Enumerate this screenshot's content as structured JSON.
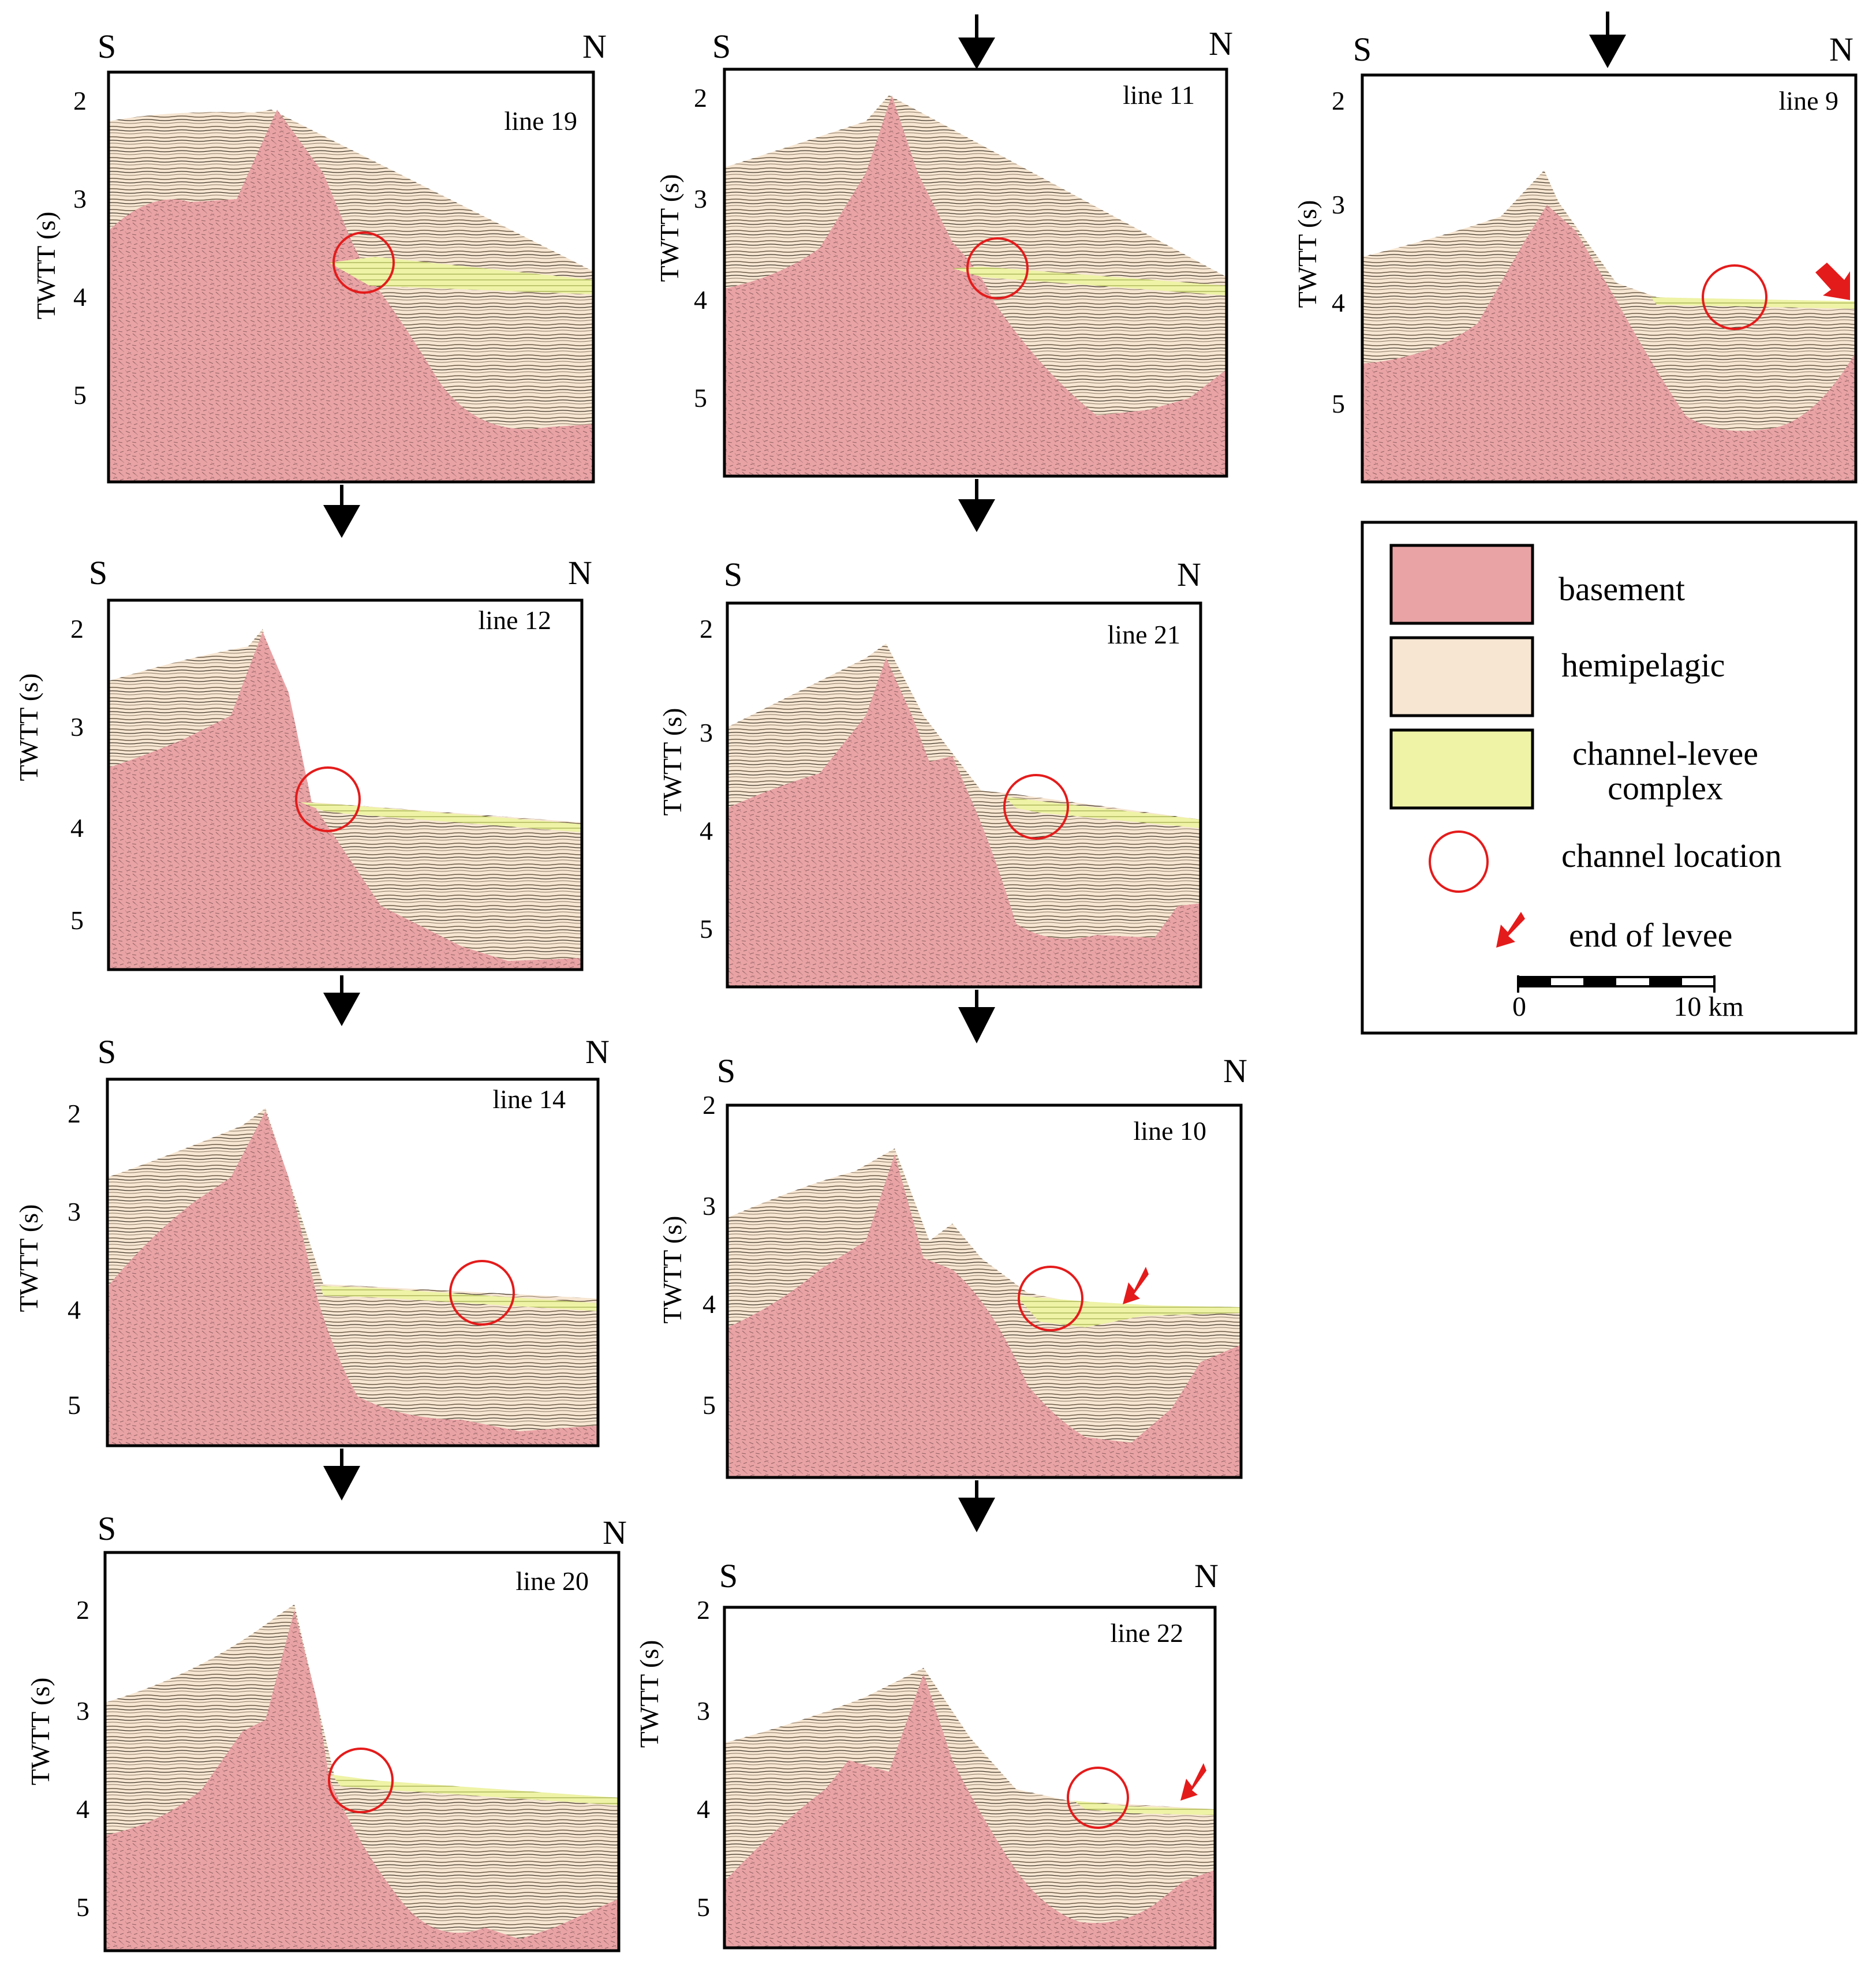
{
  "figure": {
    "compass": {
      "south": "S",
      "north": "N"
    },
    "axis": {
      "label": "TWTT (s)",
      "ticks": [
        "2",
        "3",
        "4",
        "5"
      ]
    },
    "colors": {
      "basement": "#e9a3a5",
      "hemipelagic": "#f6e6d2",
      "channel_levee": "#eef3a6",
      "marker": "#e41b1b",
      "frame": "#000000"
    },
    "panels": [
      {
        "id": "line-19",
        "label": "line 19",
        "channel": true,
        "end_of_levee": false
      },
      {
        "id": "line-11",
        "label": "line 11",
        "channel": true,
        "end_of_levee": false
      },
      {
        "id": "line-9",
        "label": "line 9",
        "channel": true,
        "end_of_levee": true
      },
      {
        "id": "line-12",
        "label": "line 12",
        "channel": true,
        "end_of_levee": false
      },
      {
        "id": "line-21",
        "label": "line 21",
        "channel": true,
        "end_of_levee": false
      },
      {
        "id": "line-14",
        "label": "line 14",
        "channel": true,
        "end_of_levee": false
      },
      {
        "id": "line-10",
        "label": "line 10",
        "channel": true,
        "end_of_levee": true
      },
      {
        "id": "line-20",
        "label": "line 20",
        "channel": true,
        "end_of_levee": false
      },
      {
        "id": "line-22",
        "label": "line 22",
        "channel": true,
        "end_of_levee": true
      }
    ],
    "legend": {
      "items": [
        {
          "key": "basement",
          "label": "basement"
        },
        {
          "key": "hemipelagic",
          "label": "hemipelagic"
        },
        {
          "key": "channel_levee",
          "label": "channel-levee",
          "label2": "complex"
        },
        {
          "key": "channel_location",
          "label": "channel location"
        },
        {
          "key": "end_of_levee",
          "label": "end of levee"
        }
      ],
      "scale": {
        "start": "0",
        "end": "10 km"
      }
    }
  }
}
